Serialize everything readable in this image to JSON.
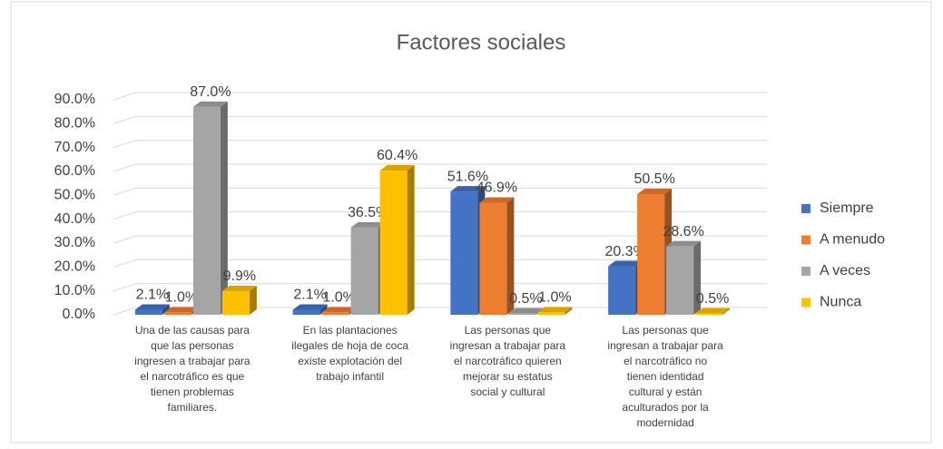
{
  "chart_data": {
    "type": "bar3d",
    "title": "Factores sociales",
    "categories": [
      "Una de las causas para que las personas ingresen a trabajar para el narcotráfico es que tienen problemas familiares.",
      "En las plantaciones ilegales de hoja de coca existe explotación del trabajo infantil",
      "Las personas que ingresan a trabajar para el narcotráfico quieren mejorar su estatus social y cultural",
      "Las personas que ingresan a trabajar para el narcotráfico no tienen identidad cultural y están aculturados por la modernidad"
    ],
    "series": [
      {
        "name": "Siempre",
        "color": "#4472c4",
        "values": [
          2.1,
          2.1,
          51.6,
          20.3
        ],
        "value_labels": [
          "2.1%",
          "2.1%",
          "51.6%",
          "20.3%"
        ]
      },
      {
        "name": "A menudo",
        "color": "#ed7d31",
        "values": [
          1.0,
          1.0,
          46.9,
          50.5
        ],
        "value_labels": [
          "1.0%",
          "1.0%",
          "46.9%",
          "50.5%"
        ]
      },
      {
        "name": "A veces",
        "color": "#a5a5a5",
        "values": [
          87.0,
          36.5,
          0.5,
          28.6
        ],
        "value_labels": [
          "87.0%",
          "36.5%",
          "0.5%",
          "28.6%"
        ]
      },
      {
        "name": "Nunca",
        "color": "#ffc000",
        "values": [
          9.9,
          60.4,
          1.0,
          0.5
        ],
        "value_labels": [
          "9.9%",
          "60.4%",
          "1.0%",
          "0.5%"
        ]
      }
    ],
    "ylim": [
      0,
      90
    ],
    "yticks": [
      {
        "value": 0,
        "label": "0.0%"
      },
      {
        "value": 10,
        "label": "10.0%"
      },
      {
        "value": 20,
        "label": "20.0%"
      },
      {
        "value": 30,
        "label": "30.0%"
      },
      {
        "value": 40,
        "label": "40.0%"
      },
      {
        "value": 50,
        "label": "50.0%"
      },
      {
        "value": 60,
        "label": "60.0%"
      },
      {
        "value": 70,
        "label": "70.0%"
      },
      {
        "value": 80,
        "label": "80.0%"
      },
      {
        "value": 90,
        "label": "90.0%"
      }
    ],
    "grid": true,
    "legend": "right"
  }
}
